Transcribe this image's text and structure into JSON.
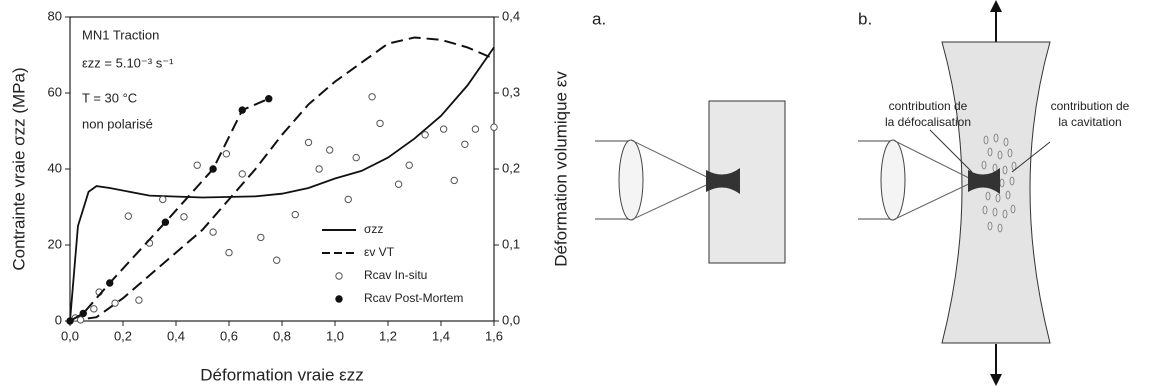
{
  "chart_data": {
    "type": "line",
    "annotations": [
      "MN1 Traction",
      "εzz = 5.10⁻³ s⁻¹",
      "T = 30 °C",
      "non polarisé"
    ],
    "xlabel": "Déformation vraie εzz",
    "ylabel": "Contrainte vraie σzz (MPa)",
    "y2label": "Déformation volumique εv",
    "xlim": [
      0,
      1.6
    ],
    "xticks": [
      {
        "value": 0,
        "label": "0,0"
      },
      {
        "value": 0.2,
        "label": "0,2"
      },
      {
        "value": 0.4,
        "label": "0,4"
      },
      {
        "value": 0.6,
        "label": "0,6"
      },
      {
        "value": 0.8,
        "label": "0,8"
      },
      {
        "value": 1.0,
        "label": "1,0"
      },
      {
        "value": 1.2,
        "label": "1,2"
      },
      {
        "value": 1.4,
        "label": "1,4"
      },
      {
        "value": 1.6,
        "label": "1,6"
      }
    ],
    "ylim": [
      0,
      80
    ],
    "yticks": [
      0,
      20,
      40,
      60,
      80
    ],
    "y2lim": [
      0,
      0.4
    ],
    "y2ticks": [
      {
        "value": 0,
        "label": "0,0"
      },
      {
        "value": 0.1,
        "label": "0,1"
      },
      {
        "value": 0.2,
        "label": "0,2"
      },
      {
        "value": 0.3,
        "label": "0,3"
      },
      {
        "value": 0.4,
        "label": "0,4"
      }
    ],
    "legend": "lower right",
    "series": [
      {
        "name": "σzz",
        "color": "#111111",
        "line": "solid",
        "marker": "none",
        "x": [
          0,
          0.03,
          0.07,
          0.1,
          0.15,
          0.3,
          0.5,
          0.7,
          0.8,
          0.9,
          1.0,
          1.1,
          1.2,
          1.3,
          1.4,
          1.5,
          1.6
        ],
        "values": [
          0,
          25,
          34,
          35.5,
          35,
          33,
          32.5,
          32.8,
          33.5,
          35,
          37.5,
          39.5,
          43,
          48,
          54,
          62,
          72
        ]
      },
      {
        "name": "εv VT",
        "color": "#111111",
        "line": "dashed",
        "marker": "none",
        "axis": "y2",
        "x": [
          0,
          0.1,
          0.2,
          0.3,
          0.4,
          0.5,
          0.6,
          0.7,
          0.8,
          0.9,
          1.0,
          1.1,
          1.2,
          1.3,
          1.4,
          1.5,
          1.6
        ],
        "values": [
          0,
          0.005,
          0.03,
          0.06,
          0.09,
          0.12,
          0.16,
          0.2,
          0.245,
          0.285,
          0.315,
          0.34,
          0.365,
          0.373,
          0.37,
          0.36,
          0.345
        ]
      },
      {
        "name": "Rcav In-situ",
        "color": "#555555",
        "line": "none",
        "marker": "open",
        "x": [
          0.02,
          0.04,
          0.09,
          0.11,
          0.17,
          0.22,
          0.26,
          0.3,
          0.35,
          0.43,
          0.48,
          0.54,
          0.6,
          0.65,
          0.59,
          0.72,
          0.78,
          0.85,
          0.9,
          0.94,
          0.98,
          1.05,
          1.08,
          1.14,
          1.17,
          1.24,
          1.28,
          1.34,
          1.41,
          1.45,
          1.49,
          1.53,
          1.6
        ],
        "values": [
          0.8,
          0.3,
          3.2,
          7.6,
          4.7,
          27.6,
          5.5,
          20.5,
          32,
          27.4,
          41,
          23.4,
          18,
          38.7,
          44,
          22,
          16,
          28,
          47,
          40,
          45,
          32,
          43,
          59,
          52,
          36,
          41,
          49,
          50.5,
          37,
          46.5,
          50.5,
          51
        ]
      },
      {
        "name": "Rcav Post-Mortem",
        "color": "#111111",
        "line": "dashed",
        "marker": "filled",
        "x": [
          0,
          0.05,
          0.15,
          0.36,
          0.54,
          0.65,
          0.75
        ],
        "values": [
          0,
          2,
          10,
          26,
          40,
          55.5,
          58.5
        ]
      }
    ]
  },
  "diagrams": {
    "a": {
      "label": "a."
    },
    "b": {
      "label": "b.",
      "left_note": [
        "contribution de",
        "la défocalisation"
      ],
      "right_note": [
        "contribution de",
        "la cavitation"
      ]
    }
  }
}
